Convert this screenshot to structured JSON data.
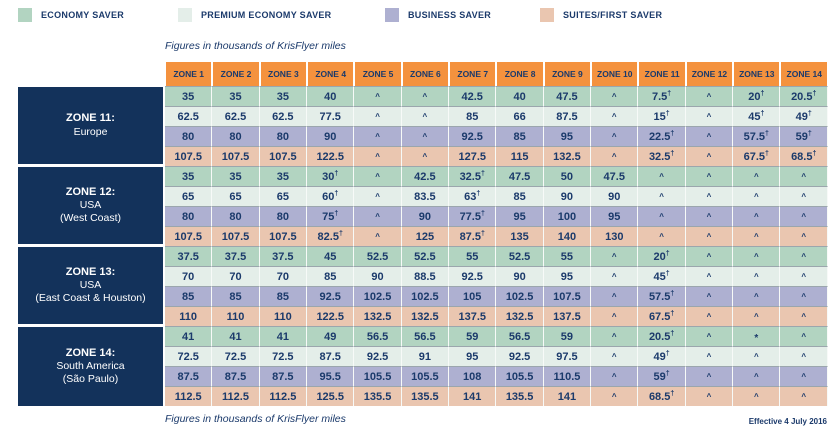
{
  "legend": [
    {
      "label": "ECONOMY SAVER",
      "color": "#B2D4C1"
    },
    {
      "label": "PREMIUM ECONOMY SAVER",
      "color": "#E4EEE9"
    },
    {
      "label": "BUSINESS SAVER",
      "color": "#AEB0D1"
    },
    {
      "label": "SUITES/FIRST SAVER",
      "color": "#EAC6B0"
    }
  ],
  "caption_top": "Figures in thousands of KrisFlyer miles",
  "caption_bottom": "Figures in thousands of KrisFlyer miles",
  "effective_note": "Effective 4 July 2016",
  "colors": {
    "header_orange": "#F4923E",
    "zone_navy": "#13325B",
    "text_navy": "#1B3A6B"
  },
  "chart_data": {
    "type": "table",
    "title": "KrisFlyer award chart — figures in thousands of KrisFlyer miles",
    "na_marker": "^",
    "footnote_marker": "†",
    "special_marker": "*",
    "columns": [
      "ZONE 1",
      "ZONE 2",
      "ZONE 3",
      "ZONE 4",
      "ZONE 5",
      "ZONE 6",
      "ZONE 7",
      "ZONE 8",
      "ZONE 9",
      "ZONE 10",
      "ZONE 11",
      "ZONE 12",
      "ZONE 13",
      "ZONE 14"
    ],
    "row_groups": [
      {
        "zone": "ZONE 11:",
        "region_lines": [
          "Europe"
        ],
        "rows": [
          {
            "cabin": "Economy Saver",
            "values": [
              "35",
              "35",
              "35",
              "40",
              "^",
              "^",
              "42.5",
              "40",
              "47.5",
              "^",
              "7.5†",
              "^",
              "20†",
              "20.5†"
            ]
          },
          {
            "cabin": "Premium Economy Saver",
            "values": [
              "62.5",
              "62.5",
              "62.5",
              "77.5",
              "^",
              "^",
              "85",
              "66",
              "87.5",
              "^",
              "15†",
              "^",
              "45†",
              "49†"
            ]
          },
          {
            "cabin": "Business Saver",
            "values": [
              "80",
              "80",
              "80",
              "90",
              "^",
              "^",
              "92.5",
              "85",
              "95",
              "^",
              "22.5†",
              "^",
              "57.5†",
              "59†"
            ]
          },
          {
            "cabin": "Suites/First Saver",
            "values": [
              "107.5",
              "107.5",
              "107.5",
              "122.5",
              "^",
              "^",
              "127.5",
              "115",
              "132.5",
              "^",
              "32.5†",
              "^",
              "67.5†",
              "68.5†"
            ]
          }
        ]
      },
      {
        "zone": "ZONE 12:",
        "region_lines": [
          "USA",
          "(West Coast)"
        ],
        "rows": [
          {
            "cabin": "Economy Saver",
            "values": [
              "35",
              "35",
              "35",
              "30†",
              "^",
              "42.5",
              "32.5†",
              "47.5",
              "50",
              "47.5",
              "^",
              "^",
              "^",
              "^"
            ]
          },
          {
            "cabin": "Premium Economy Saver",
            "values": [
              "65",
              "65",
              "65",
              "60†",
              "^",
              "83.5",
              "63†",
              "85",
              "90",
              "90",
              "^",
              "^",
              "^",
              "^"
            ]
          },
          {
            "cabin": "Business Saver",
            "values": [
              "80",
              "80",
              "80",
              "75†",
              "^",
              "90",
              "77.5†",
              "95",
              "100",
              "95",
              "^",
              "^",
              "^",
              "^"
            ]
          },
          {
            "cabin": "Suites/First Saver",
            "values": [
              "107.5",
              "107.5",
              "107.5",
              "82.5†",
              "^",
              "125",
              "87.5†",
              "135",
              "140",
              "130",
              "^",
              "^",
              "^",
              "^"
            ]
          }
        ]
      },
      {
        "zone": "ZONE 13:",
        "region_lines": [
          "USA",
          "(East Coast & Houston)"
        ],
        "rows": [
          {
            "cabin": "Economy Saver",
            "values": [
              "37.5",
              "37.5",
              "37.5",
              "45",
              "52.5",
              "52.5",
              "55",
              "52.5",
              "55",
              "^",
              "20†",
              "^",
              "^",
              "^"
            ]
          },
          {
            "cabin": "Premium Economy Saver",
            "values": [
              "70",
              "70",
              "70",
              "85",
              "90",
              "88.5",
              "92.5",
              "90",
              "95",
              "^",
              "45†",
              "^",
              "^",
              "^"
            ]
          },
          {
            "cabin": "Business Saver",
            "values": [
              "85",
              "85",
              "85",
              "92.5",
              "102.5",
              "102.5",
              "105",
              "102.5",
              "107.5",
              "^",
              "57.5†",
              "^",
              "^",
              "^"
            ]
          },
          {
            "cabin": "Suites/First Saver",
            "values": [
              "110",
              "110",
              "110",
              "122.5",
              "132.5",
              "132.5",
              "137.5",
              "132.5",
              "137.5",
              "^",
              "67.5†",
              "^",
              "^",
              "^"
            ]
          }
        ]
      },
      {
        "zone": "ZONE 14:",
        "region_lines": [
          "South America",
          "(São Paulo)"
        ],
        "rows": [
          {
            "cabin": "Economy Saver",
            "values": [
              "41",
              "41",
              "41",
              "49",
              "56.5",
              "56.5",
              "59",
              "56.5",
              "59",
              "^",
              "20.5†",
              "^",
              "*",
              "^"
            ]
          },
          {
            "cabin": "Premium Economy Saver",
            "values": [
              "72.5",
              "72.5",
              "72.5",
              "87.5",
              "92.5",
              "91",
              "95",
              "92.5",
              "97.5",
              "^",
              "49†",
              "^",
              "^",
              "^"
            ]
          },
          {
            "cabin": "Business Saver",
            "values": [
              "87.5",
              "87.5",
              "87.5",
              "95.5",
              "105.5",
              "105.5",
              "108",
              "105.5",
              "110.5",
              "^",
              "59†",
              "^",
              "^",
              "^"
            ]
          },
          {
            "cabin": "Suites/First Saver",
            "values": [
              "112.5",
              "112.5",
              "112.5",
              "125.5",
              "135.5",
              "135.5",
              "141",
              "135.5",
              "141",
              "^",
              "68.5†",
              "^",
              "^",
              "^"
            ]
          }
        ]
      }
    ]
  }
}
